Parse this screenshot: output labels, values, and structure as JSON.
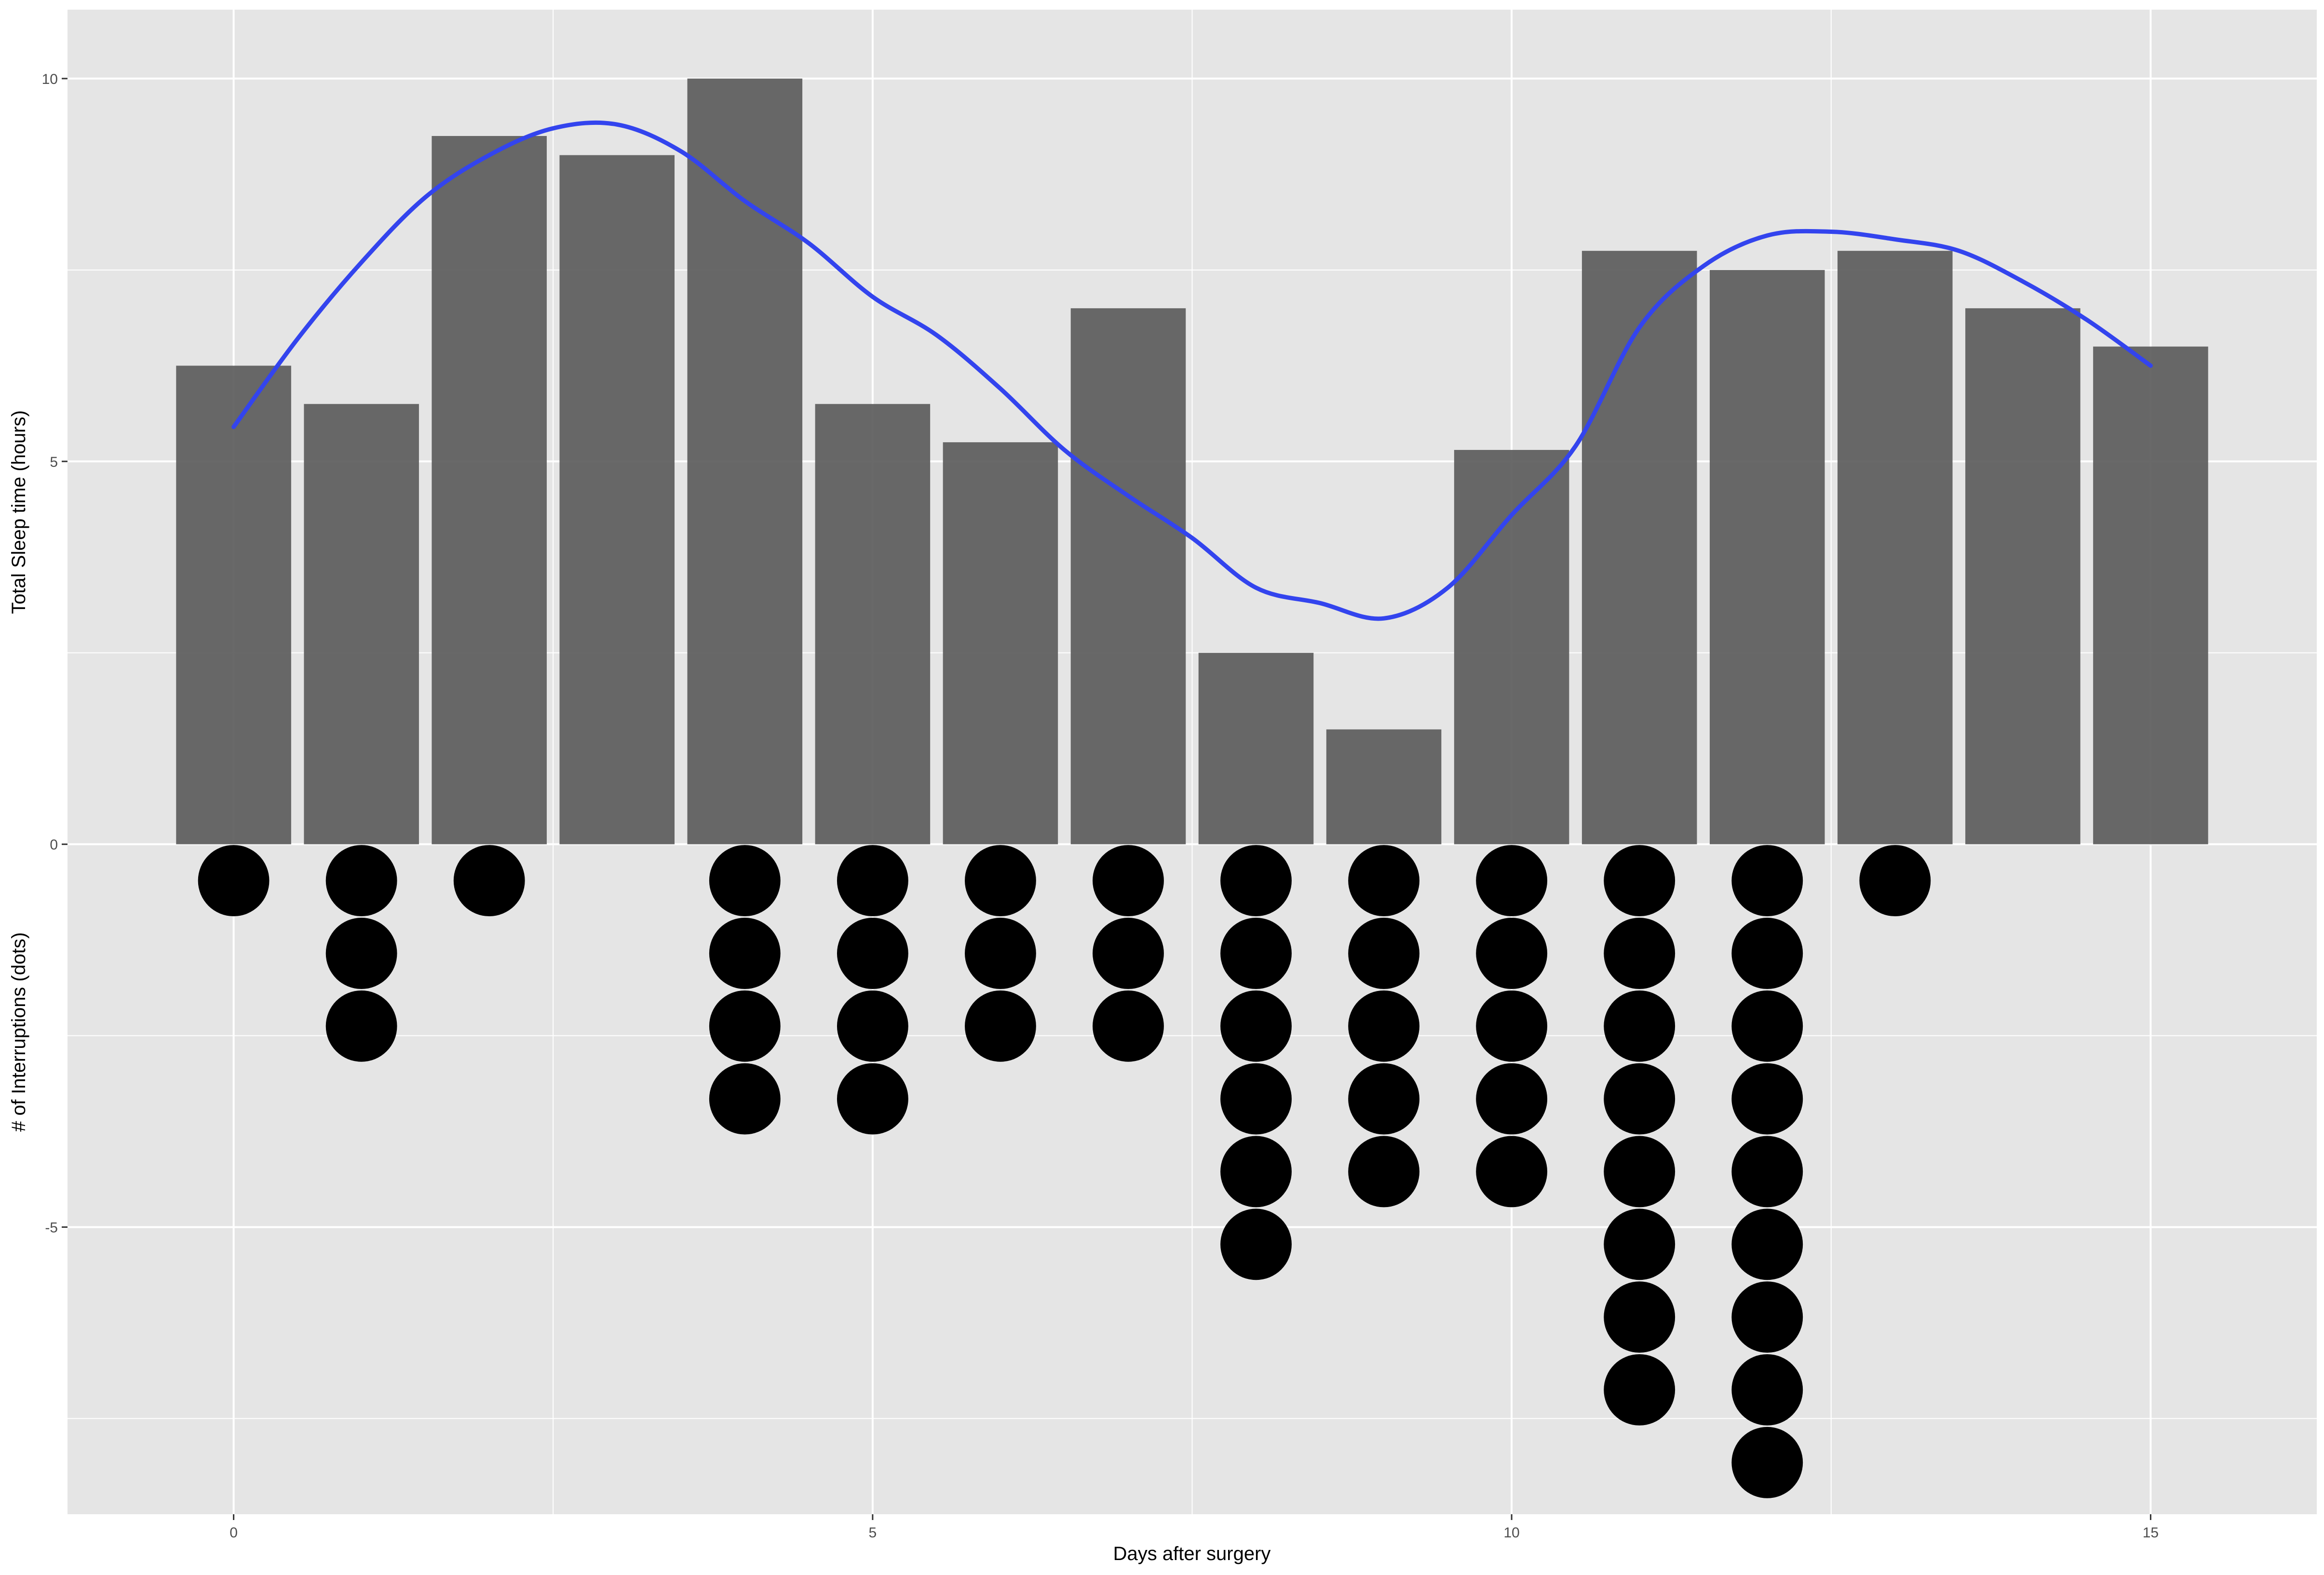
{
  "chart_data": {
    "type": "bar",
    "xlabel": "Days after surgery",
    "ylabel_top": "Total Sleep time (hours)",
    "ylabel_bottom": "# of Interruptions (dots)",
    "xlim": [
      -1.3,
      16.3
    ],
    "ylim": [
      -8.75,
      10.9
    ],
    "x_ticks": [
      0,
      5,
      10,
      15
    ],
    "y_ticks": [
      -5,
      0,
      5,
      10
    ],
    "x_tick_labels": [
      "0",
      "5",
      "10",
      "15"
    ],
    "y_tick_labels": [
      "-5",
      "0",
      "5",
      "10"
    ],
    "days": [
      0,
      1,
      2,
      3,
      4,
      5,
      6,
      7,
      8,
      9,
      10,
      11,
      12,
      13,
      14,
      15
    ],
    "sleep_hours": [
      6.25,
      5.75,
      9.25,
      9.0,
      10.0,
      5.75,
      5.25,
      7.0,
      2.5,
      1.5,
      5.15,
      7.75,
      7.5,
      7.75,
      7.0,
      6.5
    ],
    "interruptions": [
      1,
      3,
      1,
      0,
      4,
      4,
      3,
      3,
      6,
      5,
      5,
      8,
      9,
      1,
      0,
      0
    ],
    "smooth": {
      "x": [
        0,
        0.5,
        1,
        1.5,
        2,
        2.5,
        3,
        3.5,
        4,
        4.5,
        5,
        5.5,
        6,
        6.5,
        7,
        7.5,
        8,
        8.5,
        9,
        9.5,
        10,
        10.5,
        11,
        11.5,
        12,
        12.5,
        13,
        13.5,
        14,
        14.5,
        15
      ],
      "y": [
        5.45,
        6.6,
        7.6,
        8.45,
        9.0,
        9.35,
        9.4,
        9.05,
        8.4,
        7.85,
        7.15,
        6.65,
        5.95,
        5.15,
        4.55,
        4.0,
        3.35,
        3.15,
        2.95,
        3.35,
        4.3,
        5.2,
        6.75,
        7.55,
        7.95,
        8.0,
        7.9,
        7.75,
        7.35,
        6.85,
        6.25
      ]
    },
    "colors": {
      "panel": "#e5e5e5",
      "grid": "#ffffff",
      "bar": "#595959",
      "dot": "#000000",
      "line": "#3344ee"
    },
    "grid": true
  }
}
